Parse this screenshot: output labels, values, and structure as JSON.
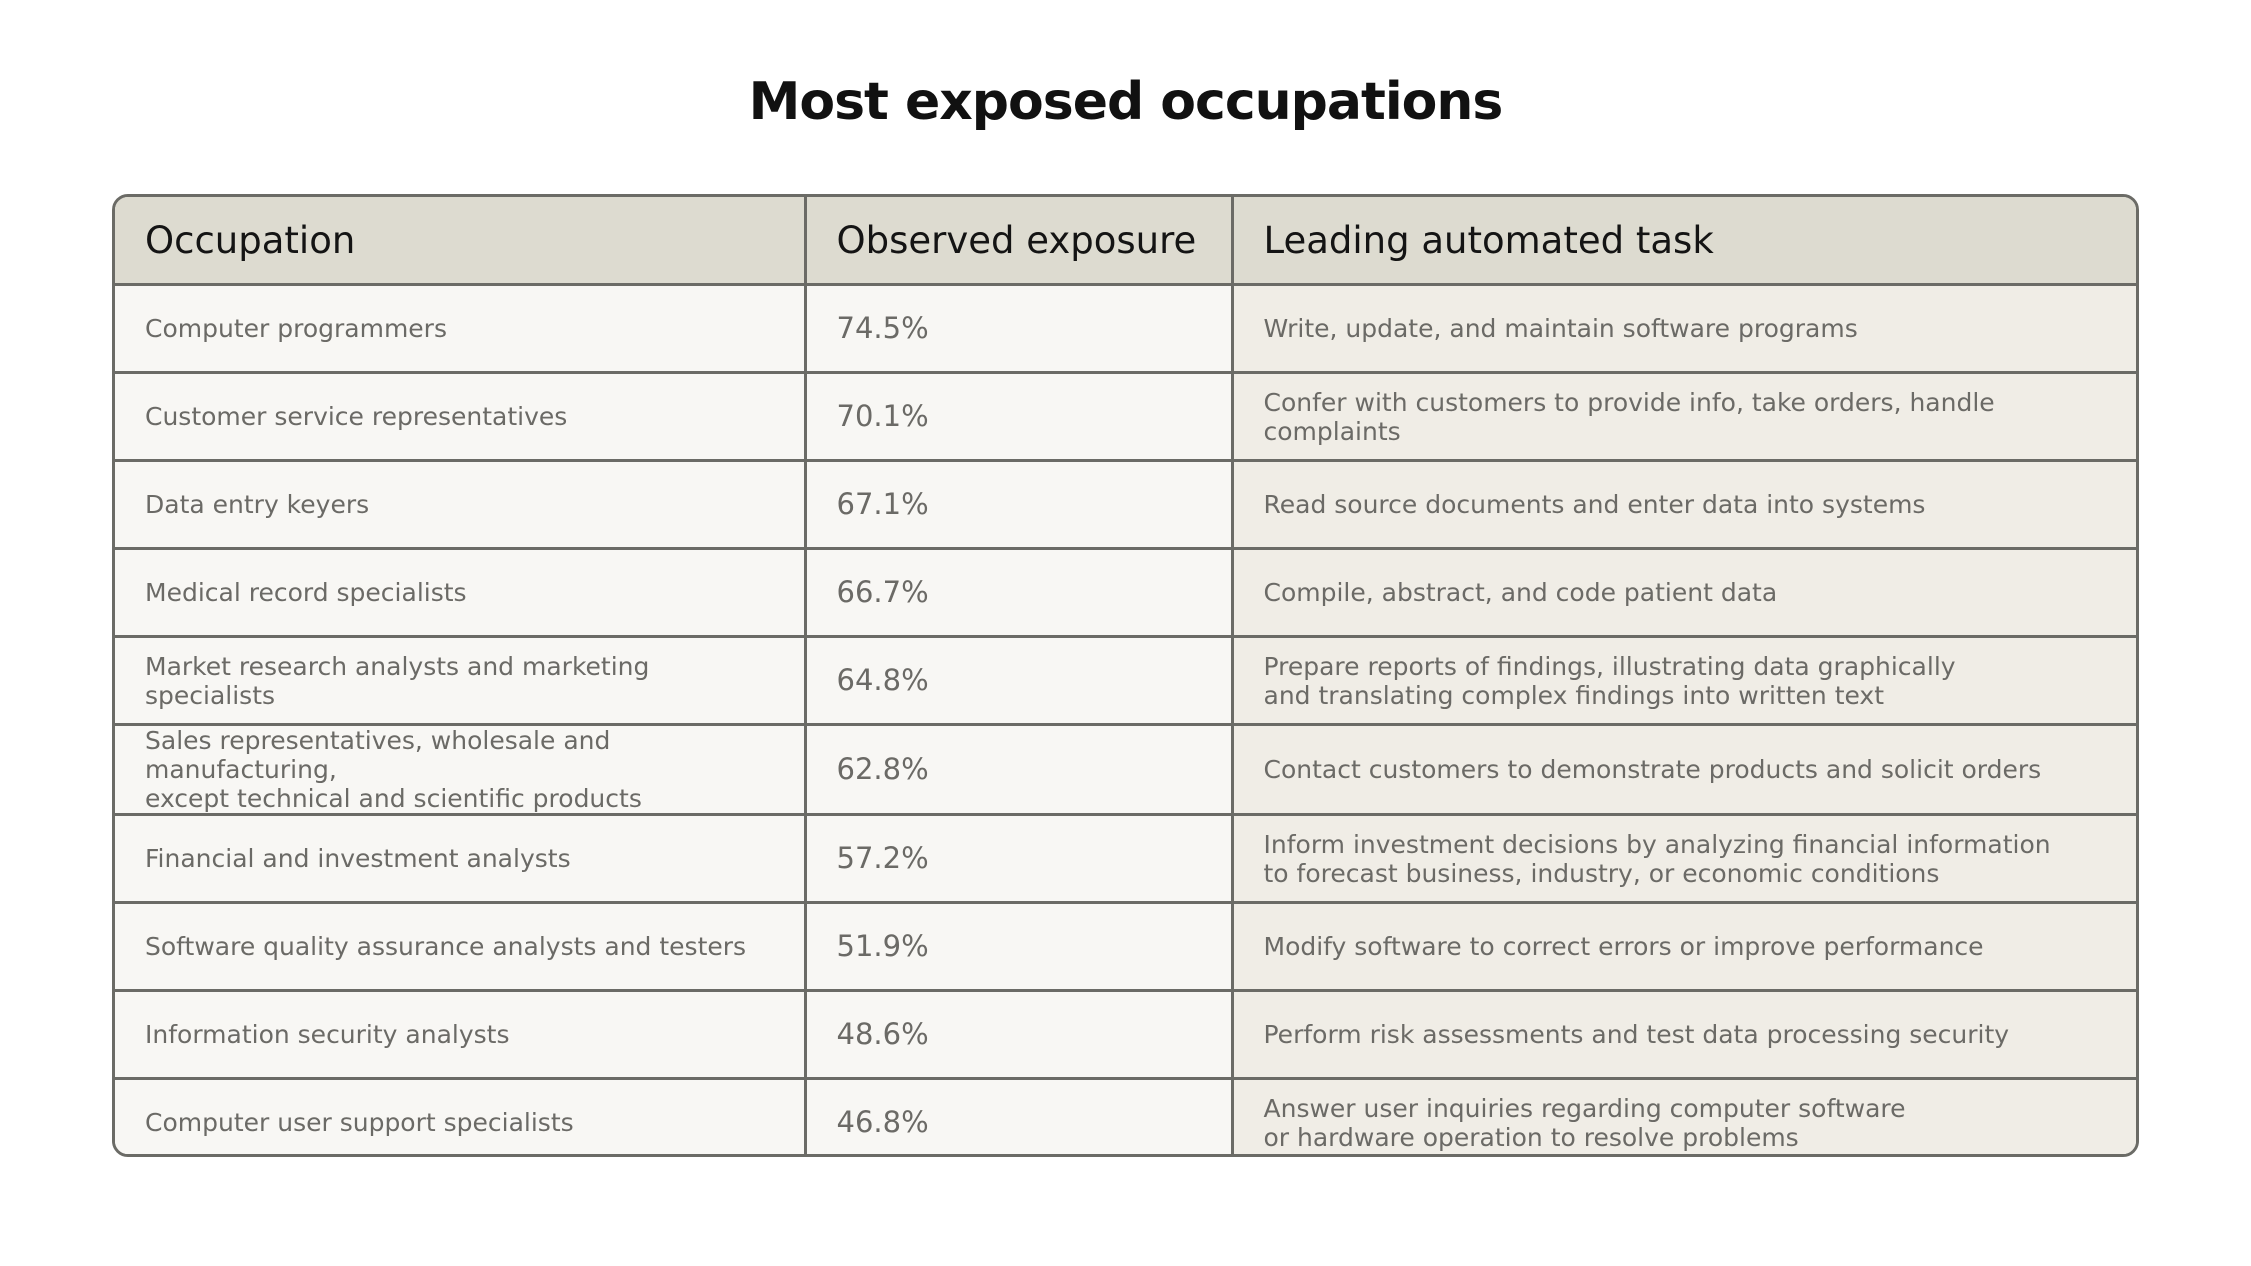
{
  "title": "Most exposed occupations",
  "table": {
    "header": [
      "Occupation",
      "Observed exposure",
      "Leading automated task"
    ],
    "rows": [
      [
        "Computer programmers",
        "74.5%",
        "Write, update, and maintain software programs"
      ],
      [
        "Customer service representatives",
        "70.1%",
        "Confer with customers to provide info, take orders, handle complaints"
      ],
      [
        "Data entry keyers",
        "67.1%",
        "Read source documents and enter data into systems"
      ],
      [
        "Medical record specialists",
        "66.7%",
        "Compile, abstract, and code patient data"
      ],
      [
        "Market research analysts and marketing specialists",
        "64.8%",
        "Prepare reports of findings, illustrating data graphically\nand translating complex findings into written text"
      ],
      [
        "Sales representatives, wholesale and manufacturing,\nexcept technical and scientific products",
        "62.8%",
        "Contact customers to demonstrate products and solicit orders"
      ],
      [
        "Financial and investment analysts",
        "57.2%",
        "Inform investment decisions by analyzing financial information\nto forecast business, industry, or economic conditions"
      ],
      [
        "Software quality assurance analysts and testers",
        "51.9%",
        "Modify software to correct errors or improve performance"
      ],
      [
        "Information security analysts",
        "48.6%",
        "Perform risk assessments and test data processing security"
      ],
      [
        "Computer user support specialists",
        "46.8%",
        "Answer user inquiries regarding computer software\nor hardware operation to resolve problems"
      ]
    ]
  }
}
